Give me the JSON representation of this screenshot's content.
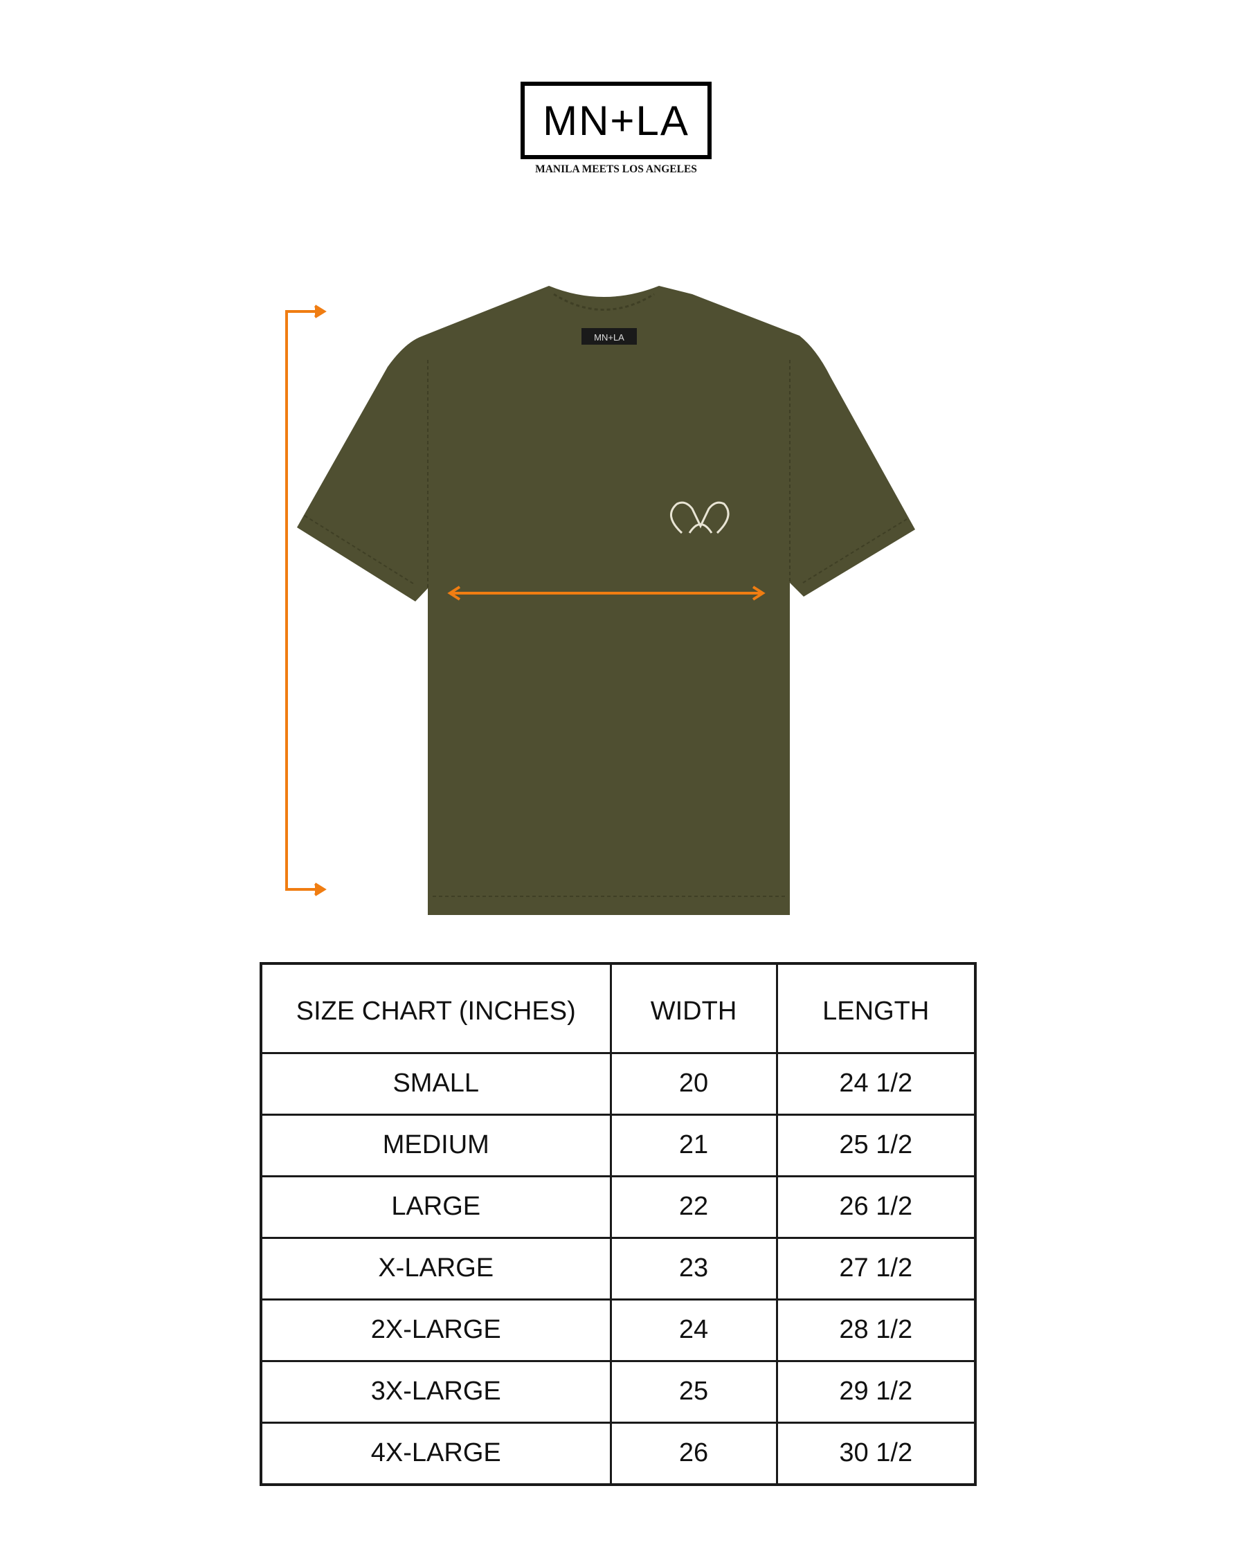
{
  "brand": {
    "logo_text": "MN+LA",
    "tagline": "MANILA MEETS LOS ANGELES",
    "neck_label": "MN+LA"
  },
  "colors": {
    "shirt": "#4f4f31",
    "measure_arrow": "#f07d12",
    "table_border": "#1a1a1a"
  },
  "measurements": {
    "length_arrow": "vertical-arrow",
    "width_arrow": "horizontal-arrow"
  },
  "size_chart": {
    "headers": [
      "SIZE CHART (INCHES)",
      "WIDTH",
      "LENGTH"
    ],
    "rows": [
      [
        "SMALL",
        "20",
        "24 1/2"
      ],
      [
        "MEDIUM",
        "21",
        "25 1/2"
      ],
      [
        "LARGE",
        "22",
        "26 1/2"
      ],
      [
        "X-LARGE",
        "23",
        "27 1/2"
      ],
      [
        "2X-LARGE",
        "24",
        "28 1/2"
      ],
      [
        "3X-LARGE",
        "25",
        "29 1/2"
      ],
      [
        "4X-LARGE",
        "26",
        "30 1/2"
      ]
    ]
  }
}
